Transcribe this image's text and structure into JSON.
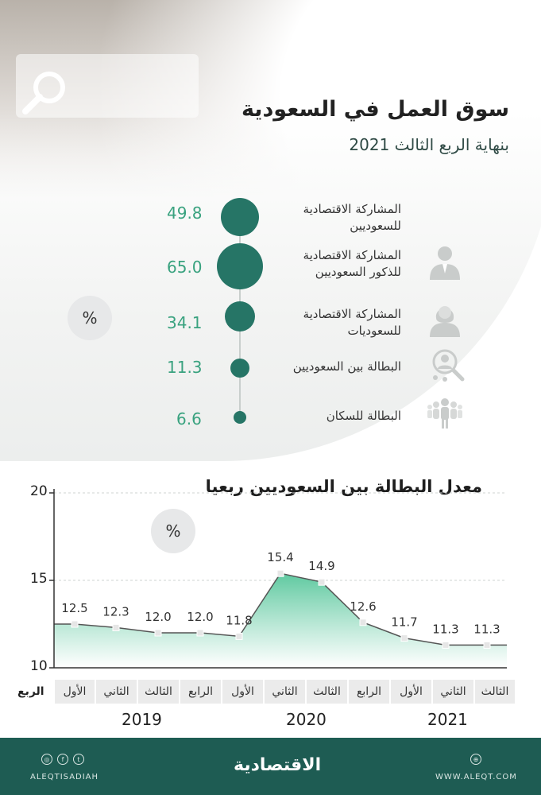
{
  "header": {
    "title": "سوق العمل في السعودية",
    "subtitle": "بنهاية الربع الثالث 2021"
  },
  "indicators": [
    {
      "label_line1": "المشاركة الاقتصادية",
      "label_line2": "للسعوديين",
      "value": "49.8",
      "icon": "none"
    },
    {
      "label_line1": "المشاركة الاقتصادية",
      "label_line2": "للذكور السعوديين",
      "value": "65.0",
      "icon": "male-person-icon"
    },
    {
      "label_line1": "المشاركة الاقتصادية",
      "label_line2": "للسعوديات",
      "value": "34.1",
      "icon": "female-person-icon"
    },
    {
      "label_line1": "البطالة بين السعوديين",
      "label_line2": "",
      "value": "11.3",
      "icon": "magnifier-people-icon"
    },
    {
      "label_line1": "البطالة للسكان",
      "label_line2": "",
      "value": "6.6",
      "icon": "group-people-icon"
    }
  ],
  "percent_sign": "%",
  "chart_data": {
    "type": "area",
    "title": "معدل البطالة بين السعوديين ربعيا",
    "unit": "%",
    "ylim": [
      10,
      20
    ],
    "yticks": [
      "10",
      "15",
      "20"
    ],
    "x_row_label": "الربع",
    "categories": [
      "الأول",
      "الثاني",
      "الثالث",
      "الرابع",
      "الأول",
      "الثاني",
      "الثالث",
      "الرابع",
      "الأول",
      "الثاني",
      "الثالث"
    ],
    "years": [
      "2019",
      "2020",
      "2021"
    ],
    "values": [
      12.5,
      12.3,
      12.0,
      12.0,
      11.8,
      15.4,
      14.9,
      12.6,
      11.7,
      11.3,
      11.3
    ],
    "value_labels": [
      "12.5",
      "12.3",
      "12.0",
      "12.0",
      "11.8",
      "15.4",
      "14.9",
      "12.6",
      "11.7",
      "11.3",
      "11.3"
    ],
    "fill_color": "#5fc9a0",
    "line_color": "#555555"
  },
  "footer": {
    "handle": "ALEQTISADIAH",
    "logo": "الاقتصادية",
    "website": "WWW.ALEQT.COM"
  }
}
